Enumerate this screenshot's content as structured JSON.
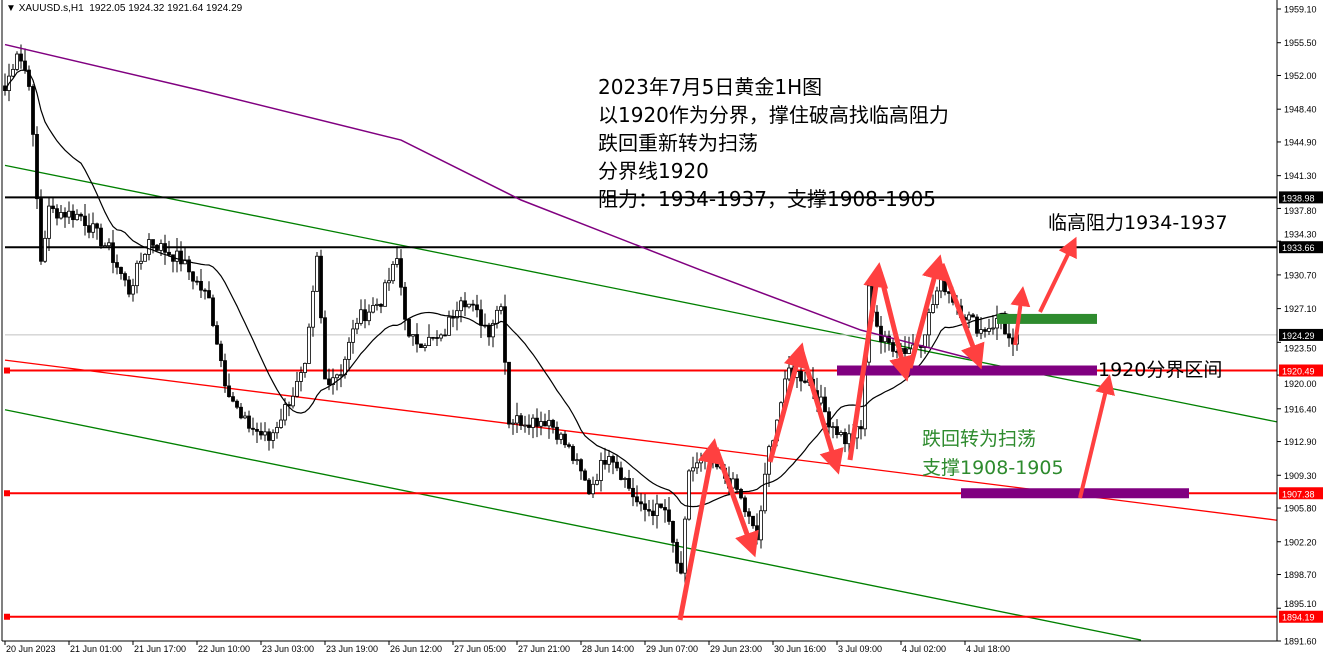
{
  "header": {
    "symbol": "XAUUSD.s,H1",
    "ohlc": "1922.05 1924.32 1921.64 1924.29"
  },
  "colors": {
    "up": "#000000",
    "down": "#000000",
    "ma_fast": "#000000",
    "ma_slow": "#800080",
    "support_resistance": "#ff0000",
    "channel": "#008000",
    "zone": "#800080",
    "arrow": "#ff4040"
  },
  "notes": {
    "line1": "2023年7月5日黄金1H图",
    "line2": "以1920作为分界，撑住破高找临高阻力",
    "line3": "跌回重新转为扫荡",
    "line4": "分界线1920",
    "line5": "阻力：1934-1937，支撑1908-1905"
  },
  "labels": {
    "resistance": "临高阻力1934-1937",
    "pivot": "1920分界区间",
    "fallback": "跌回转为扫荡",
    "support": "支撑1908-1905"
  },
  "chart_data": {
    "type": "candlestick",
    "title": "",
    "timeframe": "H1",
    "ylim": [
      1891.6,
      1959.1
    ],
    "y_ticks": [
      "1959.10",
      "1955.50",
      "1952.00",
      "1948.40",
      "1944.90",
      "1941.30",
      "1937.80",
      "1934.30",
      "1930.70",
      "1927.10",
      "1923.50",
      "1920.00",
      "1916.40",
      "1912.90",
      "1909.30",
      "1905.80",
      "1902.20",
      "1898.70",
      "1895.10",
      "1891.60"
    ],
    "x_ticks": [
      "20 Jun 2023",
      "21 Jun 01:00",
      "21 Jun 17:00",
      "22 Jun 10:00",
      "23 Jun 03:00",
      "23 Jun 19:00",
      "26 Jun 12:00",
      "27 Jun 05:00",
      "27 Jun 21:00",
      "28 Jun 14:00",
      "29 Jun 07:00",
      "29 Jun 23:00",
      "30 Jun 16:00",
      "3 Jul 09:00",
      "4 Jul 02:00",
      "4 Jul 18:00"
    ],
    "bars_per_tick": 16,
    "close_path": [
      [
        0,
        1950.4
      ],
      [
        3,
        1954.7
      ],
      [
        6,
        1951.5
      ],
      [
        9,
        1932.3
      ],
      [
        11,
        1937.6
      ],
      [
        19,
        1937
      ],
      [
        26,
        1933.4
      ],
      [
        31,
        1929
      ],
      [
        36,
        1934.4
      ],
      [
        44,
        1932.3
      ],
      [
        51,
        1928
      ],
      [
        55,
        1919.5
      ],
      [
        59,
        1915.2
      ],
      [
        66,
        1913.1
      ],
      [
        71,
        1917.3
      ],
      [
        75,
        1920.5
      ],
      [
        78,
        1932.3
      ],
      [
        80,
        1919.5
      ],
      [
        84,
        1920.5
      ],
      [
        88,
        1925.9
      ],
      [
        94,
        1928
      ],
      [
        98,
        1932.3
      ],
      [
        101,
        1923.7
      ],
      [
        109,
        1923.7
      ],
      [
        114,
        1928.6
      ],
      [
        121,
        1924.8
      ],
      [
        124,
        1928
      ],
      [
        126,
        1915.2
      ],
      [
        136,
        1915.2
      ],
      [
        141,
        1912
      ],
      [
        146,
        1907.7
      ],
      [
        151,
        1912
      ],
      [
        159,
        1905.6
      ],
      [
        165,
        1905.6
      ],
      [
        169,
        1898.1
      ],
      [
        171,
        1909.9
      ],
      [
        176,
        1910.9
      ],
      [
        183,
        1907.7
      ],
      [
        188,
        1902.4
      ],
      [
        191,
        1912
      ],
      [
        196,
        1920.5
      ],
      [
        201,
        1919.5
      ],
      [
        206,
        1915.2
      ],
      [
        210,
        1913.1
      ],
      [
        214,
        1914.1
      ],
      [
        216,
        1929
      ],
      [
        219,
        1923.7
      ],
      [
        225,
        1922.7
      ],
      [
        229,
        1923.7
      ],
      [
        234,
        1930.2
      ],
      [
        239,
        1926.9
      ],
      [
        244,
        1924.8
      ],
      [
        249,
        1925.9
      ],
      [
        252,
        1922.7
      ],
      [
        253,
        1924.29
      ]
    ],
    "last_price": 1924.29,
    "slow_ma_path": [
      [
        0,
        1955.3
      ],
      [
        49,
        1950.4
      ],
      [
        99,
        1945.1
      ],
      [
        129,
        1938.7
      ],
      [
        174,
        1931.2
      ],
      [
        214,
        1924.8
      ],
      [
        243,
        1921.6
      ]
    ],
    "fast_ma_period": 20,
    "horizontal_lines": [
      {
        "price": 1938.98,
        "color": "#000000",
        "label": "1938.98"
      },
      {
        "price": 1933.66,
        "color": "#000000",
        "label": "1933.66"
      },
      {
        "price": 1920.49,
        "color": "#ff0000",
        "label": "1920.49"
      },
      {
        "price": 1907.38,
        "color": "#ff0000",
        "label": "1907.38"
      },
      {
        "price": 1894.19,
        "color": "#ff0000",
        "label": "1894.19"
      }
    ],
    "trendlines": [
      {
        "color": "#ff0000",
        "from": [
          0,
          1921.6
        ],
        "to": [
          318,
          1904.5
        ]
      },
      {
        "color": "#008000",
        "from": [
          0,
          1942.4
        ],
        "to": [
          318,
          1915.0
        ]
      },
      {
        "color": "#008000",
        "from": [
          0,
          1916.3
        ],
        "to": [
          284,
          1891.7
        ]
      }
    ],
    "zones": [
      {
        "price": 1920.49,
        "from_bar": 208,
        "to_bar": 273,
        "color": "#800080"
      },
      {
        "price": 1907.38,
        "from_bar": 239,
        "to_bar": 296,
        "color": "#800080"
      },
      {
        "price": 1926.0,
        "from_bar": 248,
        "to_bar": 273,
        "color": "#2e8b2e"
      }
    ]
  }
}
